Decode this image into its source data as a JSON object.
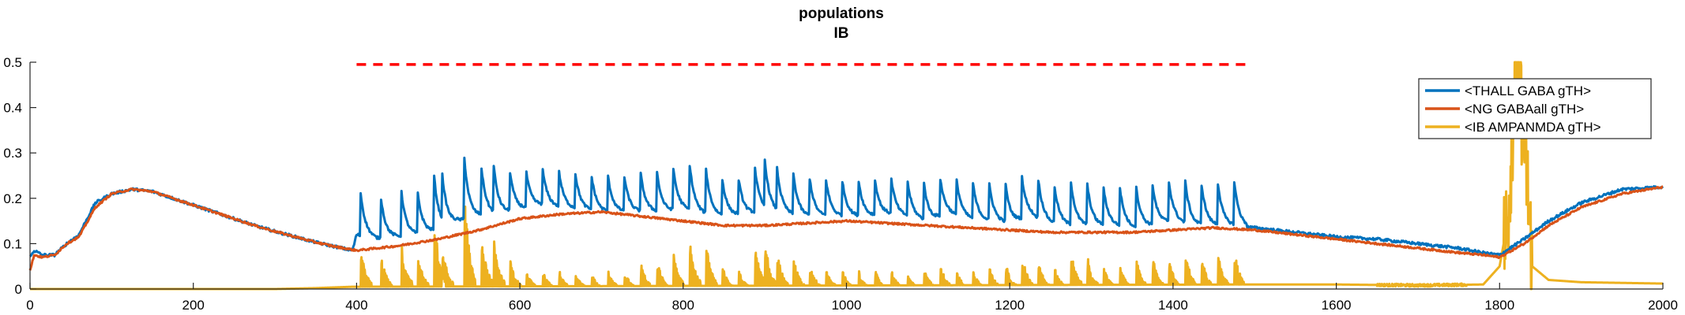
{
  "chart_data": {
    "type": "line",
    "title": "populations",
    "subtitle": "IB",
    "xlabel": "",
    "ylabel": "",
    "xlim": [
      0,
      2000
    ],
    "ylim": [
      0,
      0.5
    ],
    "x_ticks": [
      "0",
      "200",
      "400",
      "600",
      "800",
      "1000",
      "1200",
      "1400",
      "1600",
      "1800",
      "2000"
    ],
    "y_ticks": [
      "0",
      "0.1",
      "0.2",
      "0.3",
      "0.4",
      "0.5"
    ],
    "grid": false,
    "legend_position": "top-right",
    "annotation": {
      "type": "dashed-line",
      "color": "#FF0000",
      "x_start": 400,
      "x_end": 1490,
      "y": 0.495
    },
    "series": [
      {
        "name": "<THALL GABA gTH>",
        "color": "#0072BD",
        "x": [
          0,
          5,
          15,
          30,
          45,
          60,
          80,
          100,
          125,
          150,
          175,
          200,
          225,
          250,
          275,
          300,
          325,
          350,
          375,
          395,
          400,
          425,
          450,
          475,
          500,
          525,
          550,
          575,
          600,
          625,
          650,
          675,
          700,
          725,
          750,
          775,
          800,
          825,
          850,
          875,
          900,
          925,
          950,
          975,
          1000,
          1025,
          1050,
          1075,
          1100,
          1125,
          1150,
          1175,
          1200,
          1225,
          1250,
          1275,
          1300,
          1325,
          1350,
          1375,
          1400,
          1425,
          1450,
          1475,
          1500,
          1550,
          1600,
          1650,
          1700,
          1750,
          1780,
          1800,
          1830,
          1860,
          1900,
          1950,
          2000
        ],
        "y": [
          0.07,
          0.085,
          0.075,
          0.075,
          0.1,
          0.12,
          0.19,
          0.21,
          0.22,
          0.215,
          0.2,
          0.185,
          0.17,
          0.155,
          0.14,
          0.127,
          0.115,
          0.103,
          0.093,
          0.085,
          0.12,
          0.11,
          0.115,
          0.12,
          0.13,
          0.15,
          0.16,
          0.165,
          0.175,
          0.185,
          0.18,
          0.175,
          0.17,
          0.17,
          0.17,
          0.17,
          0.175,
          0.165,
          0.16,
          0.165,
          0.17,
          0.165,
          0.16,
          0.16,
          0.16,
          0.16,
          0.165,
          0.16,
          0.15,
          0.165,
          0.155,
          0.15,
          0.145,
          0.16,
          0.145,
          0.14,
          0.14,
          0.14,
          0.135,
          0.14,
          0.15,
          0.14,
          0.14,
          0.14,
          0.135,
          0.125,
          0.115,
          0.11,
          0.1,
          0.09,
          0.08,
          0.075,
          0.11,
          0.15,
          0.19,
          0.22,
          0.225
        ]
      },
      {
        "name": "<NG GABAall gTH>",
        "color": "#D95319",
        "x": [
          0,
          5,
          15,
          30,
          45,
          60,
          80,
          100,
          125,
          150,
          175,
          200,
          225,
          250,
          275,
          300,
          325,
          350,
          375,
          400,
          425,
          450,
          500,
          550,
          600,
          650,
          700,
          750,
          800,
          850,
          900,
          950,
          1000,
          1050,
          1100,
          1150,
          1200,
          1250,
          1300,
          1350,
          1400,
          1450,
          1500,
          1550,
          1600,
          1650,
          1700,
          1750,
          1780,
          1800,
          1830,
          1860,
          1900,
          1950,
          2000
        ],
        "y": [
          0.04,
          0.075,
          0.07,
          0.075,
          0.1,
          0.115,
          0.18,
          0.21,
          0.22,
          0.215,
          0.2,
          0.185,
          0.17,
          0.155,
          0.14,
          0.127,
          0.115,
          0.103,
          0.093,
          0.085,
          0.09,
          0.095,
          0.11,
          0.13,
          0.155,
          0.165,
          0.17,
          0.16,
          0.15,
          0.14,
          0.14,
          0.145,
          0.15,
          0.145,
          0.14,
          0.135,
          0.13,
          0.125,
          0.125,
          0.125,
          0.13,
          0.135,
          0.13,
          0.12,
          0.11,
          0.1,
          0.09,
          0.08,
          0.075,
          0.07,
          0.1,
          0.14,
          0.18,
          0.21,
          0.225
        ]
      },
      {
        "name": "<IB AMPANMDA gTH>",
        "color": "#EDB120",
        "baseline": 0,
        "x": [
          0,
          300,
          350,
          395,
          1490,
          1600,
          1700,
          1780,
          1800,
          1810,
          1820,
          1830,
          1840,
          1860,
          1900,
          2000
        ],
        "y": [
          0,
          0,
          0.002,
          0.005,
          0.01,
          0.01,
          0.008,
          0.01,
          0.05,
          0.15,
          0.5,
          0.35,
          0.05,
          0.02,
          0.015,
          0.012
        ],
        "bursts": [
          {
            "x": 405,
            "peak": 0.11
          },
          {
            "x": 430,
            "peak": 0.09
          },
          {
            "x": 455,
            "peak": 0.12
          },
          {
            "x": 475,
            "peak": 0.09
          },
          {
            "x": 495,
            "peak": 0.19
          },
          {
            "x": 505,
            "peak": 0.12
          },
          {
            "x": 532,
            "peak": 0.25
          },
          {
            "x": 553,
            "peak": 0.14
          },
          {
            "x": 568,
            "peak": 0.13
          },
          {
            "x": 588,
            "peak": 0.08
          },
          {
            "x": 608,
            "peak": 0.05
          },
          {
            "x": 628,
            "peak": 0.05
          },
          {
            "x": 648,
            "peak": 0.05
          },
          {
            "x": 668,
            "peak": 0.05
          },
          {
            "x": 688,
            "peak": 0.04
          },
          {
            "x": 708,
            "peak": 0.05
          },
          {
            "x": 728,
            "peak": 0.05
          },
          {
            "x": 748,
            "peak": 0.07
          },
          {
            "x": 768,
            "peak": 0.08
          },
          {
            "x": 788,
            "peak": 0.1
          },
          {
            "x": 808,
            "peak": 0.13
          },
          {
            "x": 828,
            "peak": 0.12
          },
          {
            "x": 848,
            "peak": 0.06
          },
          {
            "x": 868,
            "peak": 0.05
          },
          {
            "x": 888,
            "peak": 0.12
          },
          {
            "x": 900,
            "peak": 0.14
          },
          {
            "x": 915,
            "peak": 0.1
          },
          {
            "x": 935,
            "peak": 0.09
          },
          {
            "x": 955,
            "peak": 0.07
          },
          {
            "x": 975,
            "peak": 0.06
          },
          {
            "x": 995,
            "peak": 0.05
          },
          {
            "x": 1015,
            "peak": 0.05
          },
          {
            "x": 1035,
            "peak": 0.05
          },
          {
            "x": 1055,
            "peak": 0.05
          },
          {
            "x": 1075,
            "peak": 0.04
          },
          {
            "x": 1095,
            "peak": 0.06
          },
          {
            "x": 1115,
            "peak": 0.07
          },
          {
            "x": 1135,
            "peak": 0.05
          },
          {
            "x": 1155,
            "peak": 0.05
          },
          {
            "x": 1175,
            "peak": 0.06
          },
          {
            "x": 1195,
            "peak": 0.07
          },
          {
            "x": 1215,
            "peak": 0.1
          },
          {
            "x": 1235,
            "peak": 0.08
          },
          {
            "x": 1255,
            "peak": 0.06
          },
          {
            "x": 1275,
            "peak": 0.11
          },
          {
            "x": 1295,
            "peak": 0.09
          },
          {
            "x": 1315,
            "peak": 0.06
          },
          {
            "x": 1335,
            "peak": 0.07
          },
          {
            "x": 1355,
            "peak": 0.08
          },
          {
            "x": 1375,
            "peak": 0.09
          },
          {
            "x": 1395,
            "peak": 0.08
          },
          {
            "x": 1415,
            "peak": 0.1
          },
          {
            "x": 1435,
            "peak": 0.09
          },
          {
            "x": 1455,
            "peak": 0.1
          },
          {
            "x": 1475,
            "peak": 0.11
          }
        ]
      }
    ]
  }
}
